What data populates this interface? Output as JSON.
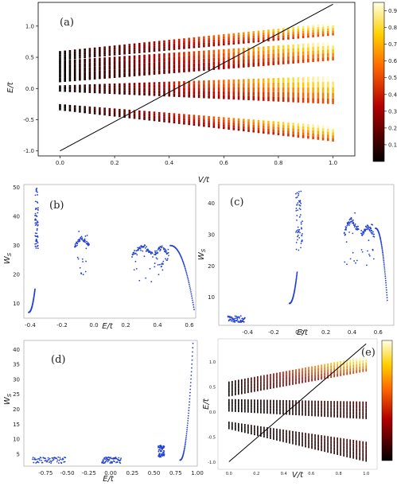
{
  "figure": {
    "panel_labels": [
      "(a)",
      "(b)",
      "(c)",
      "(d)",
      "(e)"
    ]
  },
  "colorbar": {
    "ticks": [
      "0.9",
      "0.8",
      "0.7",
      "0.6",
      "0.5",
      "0.4",
      "0.3",
      "0.2",
      "0.1"
    ]
  },
  "chart_data": [
    {
      "panel": "(a)",
      "type": "scatter",
      "xlabel": "V/t",
      "ylabel": "E/t",
      "xlim": [
        -0.08,
        1.08
      ],
      "ylim": [
        -1.08,
        1.38
      ],
      "xticks": [
        "0.0",
        "0.2",
        "0.4",
        "0.6",
        "0.8",
        "1.0"
      ],
      "yticks": [
        "-1.0",
        "-0.5",
        "0.0",
        "0.5",
        "1.0"
      ],
      "n_columns": 56,
      "line": {
        "x": [
          0,
          1
        ],
        "y": [
          -1.0,
          1.35
        ]
      },
      "bands": [
        {
          "y_start": [
            0.45,
            0.6
          ],
          "y_end": [
            0.85,
            1.05
          ]
        },
        {
          "y_start": [
            0.1,
            0.45
          ],
          "y_end": [
            0.45,
            0.75
          ]
        },
        {
          "y_start": [
            -0.05,
            0.05
          ],
          "y_end": [
            -0.25,
            0.2
          ]
        },
        {
          "y_start": [
            -0.35,
            -0.25
          ],
          "y_end": [
            -0.85,
            -0.6
          ]
        }
      ],
      "color_scale": "hot",
      "clim": [
        0.0,
        0.95
      ]
    },
    {
      "panel": "(b)",
      "type": "scatter",
      "xlabel": "E/t",
      "ylabel": "W_S",
      "xlim": [
        -0.44,
        0.64
      ],
      "ylim": [
        5,
        51
      ],
      "xticks": [
        "-0.4",
        "-0.2",
        "0.0",
        "0.2",
        "0.4",
        "0.6"
      ],
      "yticks": [
        "10",
        "20",
        "30",
        "40",
        "50"
      ],
      "clusters": [
        {
          "x": [
            -0.41,
            -0.37
          ],
          "y": [
            7,
            15
          ],
          "trend": "rising"
        },
        {
          "x": [
            -0.37,
            -0.35
          ],
          "y": [
            28,
            50
          ],
          "trend": "spike"
        },
        {
          "x": [
            -0.12,
            -0.03
          ],
          "y": [
            20,
            35
          ],
          "trend": "arch"
        },
        {
          "x": [
            0.24,
            0.37
          ],
          "y": [
            15,
            33
          ],
          "trend": "arch"
        },
        {
          "x": [
            0.38,
            0.47
          ],
          "y": [
            20,
            31
          ],
          "trend": "arch"
        },
        {
          "x": [
            0.48,
            0.63
          ],
          "y": [
            8,
            30
          ],
          "trend": "falling"
        }
      ]
    },
    {
      "panel": "(c)",
      "type": "scatter",
      "xlabel": "E/t",
      "ylabel": "W_S",
      "xlim": [
        -0.62,
        0.72
      ],
      "ylim": [
        1,
        46
      ],
      "xticks": [
        "-0.4",
        "-0.2",
        "0.0",
        "0.2",
        "0.4",
        "0.6"
      ],
      "yticks": [
        "10",
        "20",
        "30",
        "40"
      ],
      "clusters": [
        {
          "x": [
            -0.55,
            -0.42
          ],
          "y": [
            2,
            4
          ],
          "trend": "flat"
        },
        {
          "x": [
            -0.08,
            -0.02
          ],
          "y": [
            8,
            18
          ],
          "trend": "rising"
        },
        {
          "x": [
            -0.03,
            0.02
          ],
          "y": [
            25,
            44
          ],
          "trend": "spike"
        },
        {
          "x": [
            0.34,
            0.45
          ],
          "y": [
            18,
            38
          ],
          "trend": "arch"
        },
        {
          "x": [
            0.47,
            0.57
          ],
          "y": [
            20,
            35
          ],
          "trend": "arch"
        },
        {
          "x": [
            0.58,
            0.67
          ],
          "y": [
            9,
            32
          ],
          "trend": "falling"
        }
      ]
    },
    {
      "panel": "(d)",
      "type": "scatter",
      "xlabel": "E/t",
      "ylabel": "W_S",
      "xlim": [
        -1.0,
        1.0
      ],
      "ylim": [
        1,
        43
      ],
      "xticks": [
        "-0.75",
        "-0.50",
        "-0.25",
        "0.00",
        "0.25",
        "0.50",
        "0.75",
        "1.00"
      ],
      "yticks": [
        "5",
        "10",
        "15",
        "20",
        "25",
        "30",
        "35",
        "40"
      ],
      "clusters": [
        {
          "x": [
            -0.9,
            -0.52
          ],
          "y": [
            2,
            4
          ],
          "trend": "flat"
        },
        {
          "x": [
            -0.1,
            0.12
          ],
          "y": [
            2,
            4
          ],
          "trend": "flat"
        },
        {
          "x": [
            0.55,
            0.62
          ],
          "y": [
            4,
            8
          ],
          "trend": "spike"
        },
        {
          "x": [
            0.8,
            0.95
          ],
          "y": [
            3,
            42
          ],
          "trend": "rising"
        }
      ]
    },
    {
      "panel": "(e)",
      "type": "scatter",
      "xlabel": "V/t",
      "ylabel": "E/t",
      "xlim": [
        -0.08,
        1.08
      ],
      "ylim": [
        -1.15,
        1.45
      ],
      "xticks": [
        "0.0",
        "0.2",
        "0.4",
        "0.6",
        "0.8",
        "1.0"
      ],
      "yticks": [
        "-1.0",
        "-0.5",
        "0.0",
        "0.5",
        "1.0"
      ],
      "n_columns": 44,
      "line": {
        "x": [
          0,
          1
        ],
        "y": [
          -1.0,
          1.35
        ]
      },
      "bands": [
        {
          "y_start": [
            0.3,
            0.6
          ],
          "y_end": [
            0.8,
            1.1
          ]
        },
        {
          "y_start": [
            0.0,
            0.25
          ],
          "y_end": [
            -0.15,
            0.2
          ]
        },
        {
          "y_start": [
            -0.35,
            -0.2
          ],
          "y_end": [
            -1.0,
            -0.6
          ]
        }
      ],
      "color_scale": "hot"
    }
  ]
}
